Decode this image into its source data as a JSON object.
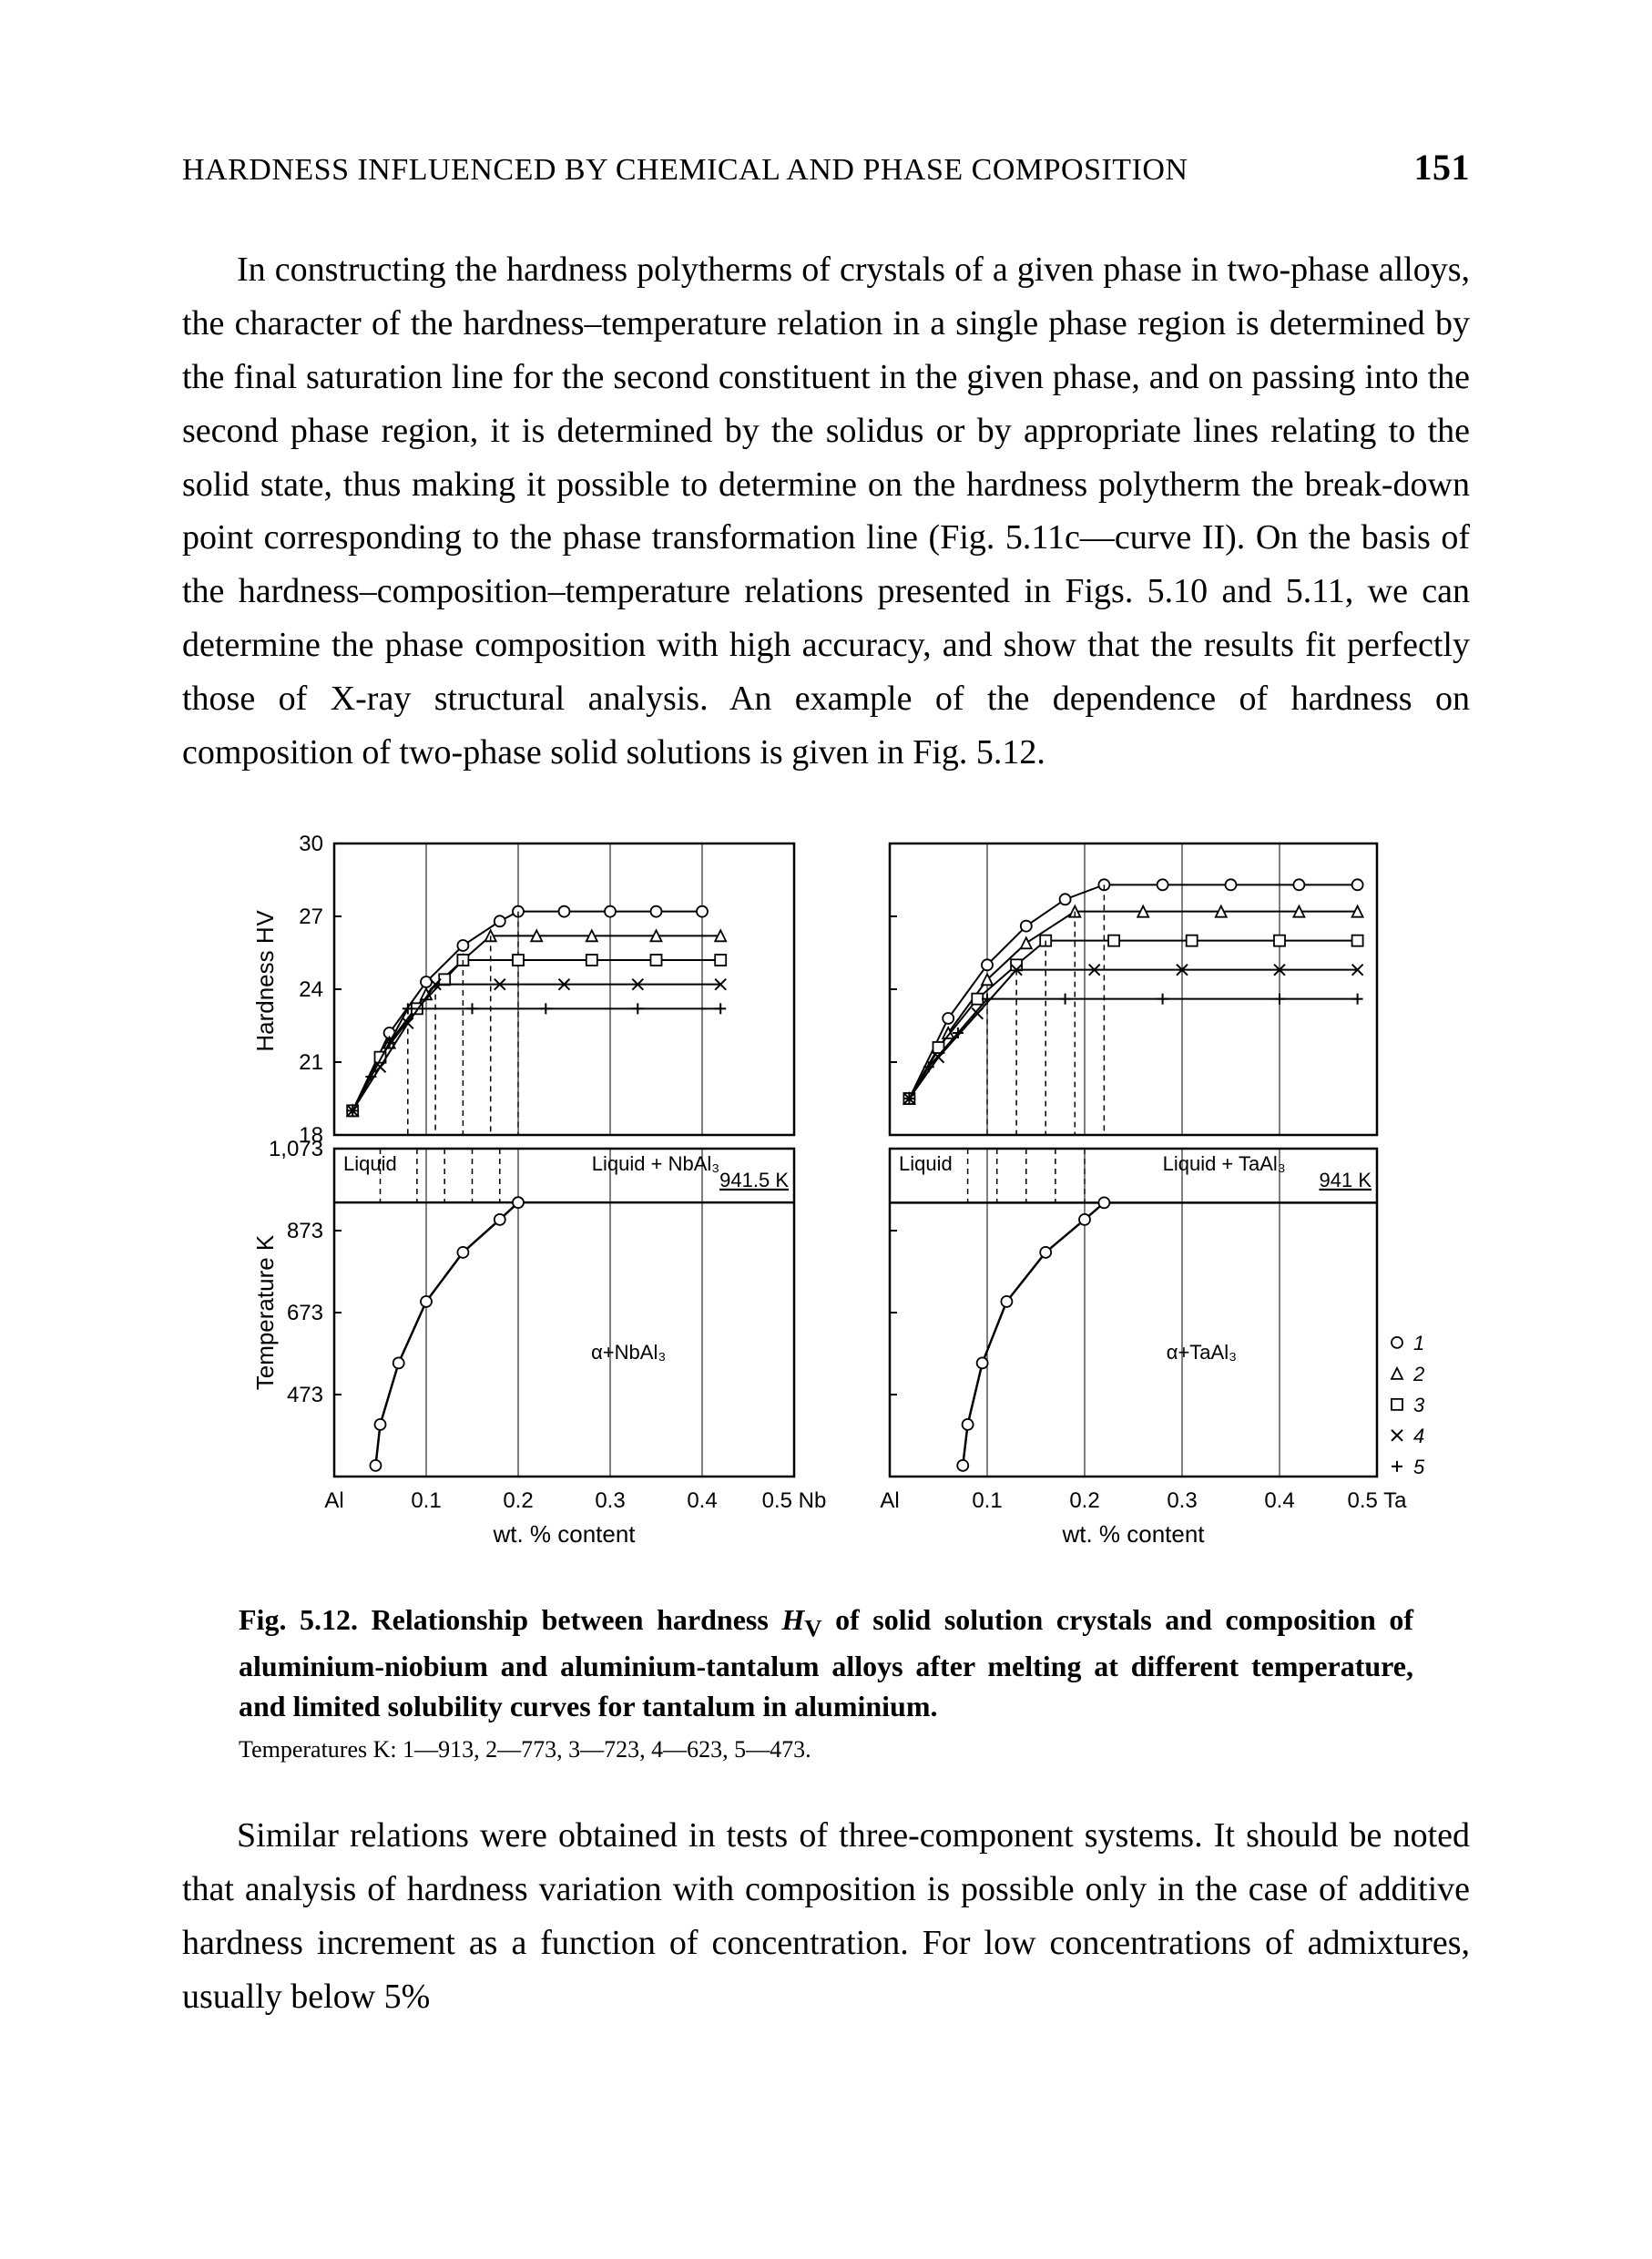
{
  "header": {
    "title": "HARDNESS INFLUENCED BY CHEMICAL AND PHASE COMPOSITION",
    "page": "151"
  },
  "paragraphs": {
    "p1": "In constructing the hardness polytherms of crystals of a given phase in two-phase alloys, the character of the hardness–temperature relation in a single phase region is determined by the final saturation line for the second constituent in the given phase, and on passing into the second phase region, it is determined by the solidus or by appropriate lines relating to the solid state, thus making it possible to determine on the hardness polytherm the break-down point corresponding to the phase transformation line (Fig. 5.11c—curve II). On the basis of the hardness–composition–temperature relations presented in Figs. 5.10 and 5.11, we can determine the phase composition with high accuracy, and show that the results fit perfectly those of X-ray structural analysis. An example of the dependence of hardness on composition of two-phase solid solutions is given in Fig. 5.12.",
    "p2": "Similar relations were obtained in tests of three-component systems. It should be noted that analysis of hardness variation with composition is possible only in the case of additive hardness increment as a function of concentration. For low concentrations of admixtures, usually below 5%"
  },
  "figure": {
    "caption_main_prefix": "Fig. 5.12. Relationship between hardness ",
    "caption_main_hv": "H",
    "caption_main_hv_sub": "V",
    "caption_main_suffix": " of solid solution crystals and composition of aluminium-niobium and aluminium-tantalum alloys after melting at different temperature, and limited solubility curves for tantalum in aluminium.",
    "caption_sub": "Temperatures K: 1—913, 2—773, 3—723, 4—623, 5—473.",
    "colors": {
      "axis": "#000000",
      "grid": "#000000",
      "bg": "#ffffff",
      "dash": "#000000"
    },
    "hardness": {
      "ylabel": "Hardness  H",
      "ylabel_sub": "V",
      "ylim": [
        18,
        30
      ],
      "yticks": [
        18,
        21,
        24,
        27,
        30
      ],
      "xlim": [
        0,
        0.5
      ],
      "xticks": [
        0.1,
        0.2,
        0.3,
        0.4,
        0.5
      ]
    },
    "phase": {
      "ylabel": "Temperature K",
      "ylim": [
        273,
        1073
      ],
      "yticks": [
        473,
        673,
        873,
        1073
      ],
      "xlim": [
        0,
        0.5
      ],
      "xticks": [
        0.1,
        0.2,
        0.3,
        0.4,
        0.5
      ],
      "xlabel": "wt. % content"
    },
    "left": {
      "x_start_label": "Al",
      "x_end_label": "0.5 Nb",
      "phase_labels": {
        "liquid": "Liquid",
        "liquid_side": "Liquid + NbAl₃",
        "temp_line": "941.5 K",
        "alpha": "α+NbAl₃"
      },
      "solubility_curve": [
        {
          "x": 0.045,
          "y": 300
        },
        {
          "x": 0.05,
          "y": 400
        },
        {
          "x": 0.07,
          "y": 550
        },
        {
          "x": 0.1,
          "y": 700
        },
        {
          "x": 0.14,
          "y": 820
        },
        {
          "x": 0.18,
          "y": 900
        },
        {
          "x": 0.2,
          "y": 941.5
        }
      ],
      "vlines_dashed": [
        0.05,
        0.09,
        0.12,
        0.15,
        0.18
      ],
      "hardness_series": [
        {
          "marker": "circle",
          "plateau": 27.2,
          "break_x": 0.2,
          "pts": [
            [
              0.02,
              19.0
            ],
            [
              0.06,
              22.2
            ],
            [
              0.1,
              24.3
            ],
            [
              0.14,
              25.8
            ],
            [
              0.18,
              26.8
            ],
            [
              0.2,
              27.2
            ],
            [
              0.25,
              27.2
            ],
            [
              0.3,
              27.2
            ],
            [
              0.35,
              27.2
            ],
            [
              0.4,
              27.2
            ]
          ]
        },
        {
          "marker": "triangle",
          "plateau": 26.2,
          "break_x": 0.17,
          "pts": [
            [
              0.02,
              19.0
            ],
            [
              0.06,
              21.8
            ],
            [
              0.1,
              23.8
            ],
            [
              0.14,
              25.2
            ],
            [
              0.17,
              26.2
            ],
            [
              0.22,
              26.2
            ],
            [
              0.28,
              26.2
            ],
            [
              0.35,
              26.2
            ],
            [
              0.42,
              26.2
            ]
          ]
        },
        {
          "marker": "square",
          "plateau": 25.2,
          "break_x": 0.14,
          "pts": [
            [
              0.02,
              19.0
            ],
            [
              0.05,
              21.2
            ],
            [
              0.09,
              23.2
            ],
            [
              0.12,
              24.4
            ],
            [
              0.14,
              25.2
            ],
            [
              0.2,
              25.2
            ],
            [
              0.28,
              25.2
            ],
            [
              0.35,
              25.2
            ],
            [
              0.42,
              25.2
            ]
          ]
        },
        {
          "marker": "x",
          "plateau": 24.2,
          "break_x": 0.11,
          "pts": [
            [
              0.02,
              19.0
            ],
            [
              0.05,
              20.8
            ],
            [
              0.08,
              22.6
            ],
            [
              0.11,
              24.2
            ],
            [
              0.18,
              24.2
            ],
            [
              0.25,
              24.2
            ],
            [
              0.33,
              24.2
            ],
            [
              0.42,
              24.2
            ]
          ]
        },
        {
          "marker": "plus",
          "plateau": 23.2,
          "break_x": 0.08,
          "pts": [
            [
              0.02,
              19.0
            ],
            [
              0.04,
              20.4
            ],
            [
              0.06,
              21.8
            ],
            [
              0.08,
              23.2
            ],
            [
              0.15,
              23.2
            ],
            [
              0.23,
              23.2
            ],
            [
              0.33,
              23.2
            ],
            [
              0.42,
              23.2
            ]
          ]
        }
      ]
    },
    "right": {
      "x_start_label": "Al",
      "x_end_label": "0.5 Ta",
      "phase_labels": {
        "liquid": "Liquid",
        "liquid_side": "Liquid + TaAl₃",
        "temp_line": "941 K",
        "alpha": "α+TaAl₃"
      },
      "solubility_curve": [
        {
          "x": 0.075,
          "y": 300
        },
        {
          "x": 0.08,
          "y": 400
        },
        {
          "x": 0.095,
          "y": 550
        },
        {
          "x": 0.12,
          "y": 700
        },
        {
          "x": 0.16,
          "y": 820
        },
        {
          "x": 0.2,
          "y": 900
        },
        {
          "x": 0.22,
          "y": 941
        }
      ],
      "vlines_dashed": [
        0.08,
        0.11,
        0.14,
        0.17,
        0.2
      ],
      "hardness_series": [
        {
          "marker": "circle",
          "plateau": 28.3,
          "break_x": 0.22,
          "pts": [
            [
              0.02,
              19.5
            ],
            [
              0.06,
              22.8
            ],
            [
              0.1,
              25.0
            ],
            [
              0.14,
              26.6
            ],
            [
              0.18,
              27.7
            ],
            [
              0.22,
              28.3
            ],
            [
              0.28,
              28.3
            ],
            [
              0.35,
              28.3
            ],
            [
              0.42,
              28.3
            ],
            [
              0.48,
              28.3
            ]
          ]
        },
        {
          "marker": "triangle",
          "plateau": 27.2,
          "break_x": 0.19,
          "pts": [
            [
              0.02,
              19.5
            ],
            [
              0.06,
              22.2
            ],
            [
              0.1,
              24.4
            ],
            [
              0.14,
              25.9
            ],
            [
              0.19,
              27.2
            ],
            [
              0.26,
              27.2
            ],
            [
              0.34,
              27.2
            ],
            [
              0.42,
              27.2
            ],
            [
              0.48,
              27.2
            ]
          ]
        },
        {
          "marker": "square",
          "plateau": 26.0,
          "break_x": 0.16,
          "pts": [
            [
              0.02,
              19.5
            ],
            [
              0.05,
              21.6
            ],
            [
              0.09,
              23.6
            ],
            [
              0.13,
              25.0
            ],
            [
              0.16,
              26.0
            ],
            [
              0.23,
              26.0
            ],
            [
              0.31,
              26.0
            ],
            [
              0.4,
              26.0
            ],
            [
              0.48,
              26.0
            ]
          ]
        },
        {
          "marker": "x",
          "plateau": 24.8,
          "break_x": 0.13,
          "pts": [
            [
              0.02,
              19.5
            ],
            [
              0.05,
              21.2
            ],
            [
              0.09,
              23.0
            ],
            [
              0.13,
              24.8
            ],
            [
              0.21,
              24.8
            ],
            [
              0.3,
              24.8
            ],
            [
              0.4,
              24.8
            ],
            [
              0.48,
              24.8
            ]
          ]
        },
        {
          "marker": "plus",
          "plateau": 23.6,
          "break_x": 0.1,
          "pts": [
            [
              0.02,
              19.5
            ],
            [
              0.04,
              20.8
            ],
            [
              0.07,
              22.2
            ],
            [
              0.1,
              23.6
            ],
            [
              0.18,
              23.6
            ],
            [
              0.28,
              23.6
            ],
            [
              0.4,
              23.6
            ],
            [
              0.48,
              23.6
            ]
          ]
        }
      ],
      "legend": [
        {
          "marker": "circle",
          "label": "1"
        },
        {
          "marker": "triangle",
          "label": "2"
        },
        {
          "marker": "square",
          "label": "3"
        },
        {
          "marker": "x",
          "label": "4"
        },
        {
          "marker": "plus",
          "label": "5"
        }
      ]
    }
  }
}
